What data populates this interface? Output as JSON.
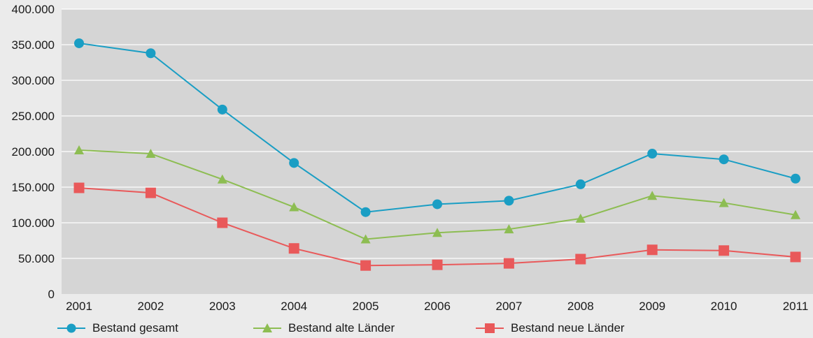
{
  "chart_data": {
    "type": "line",
    "categories": [
      "2001",
      "2002",
      "2003",
      "2004",
      "2005",
      "2006",
      "2007",
      "2008",
      "2009",
      "2010",
      "2011"
    ],
    "ylim": [
      0,
      400000
    ],
    "yticks": [
      0,
      50000,
      100000,
      150000,
      200000,
      250000,
      300000,
      350000,
      400000
    ],
    "ytick_labels": [
      "0",
      "50.000",
      "100.000",
      "150.000",
      "200.000",
      "250.000",
      "300.000",
      "350.000",
      "400.000"
    ],
    "grid": true,
    "legend_position": "bottom",
    "series": [
      {
        "name": "Bestand gesamt",
        "marker": "circle",
        "color": "#1a9ec4",
        "values": [
          352000,
          338000,
          259000,
          184000,
          115000,
          126000,
          131000,
          154000,
          197000,
          189000,
          162000
        ]
      },
      {
        "name": "Bestand alte Länder",
        "marker": "triangle",
        "color": "#8dbd52",
        "values": [
          202000,
          197000,
          161000,
          122000,
          77000,
          86000,
          91000,
          106000,
          138000,
          128000,
          111000
        ]
      },
      {
        "name": "Bestand neue Länder",
        "marker": "square",
        "color": "#e9595a",
        "values": [
          149000,
          142000,
          100000,
          64000,
          40000,
          41000,
          43000,
          49000,
          62000,
          61000,
          52000
        ]
      }
    ]
  }
}
